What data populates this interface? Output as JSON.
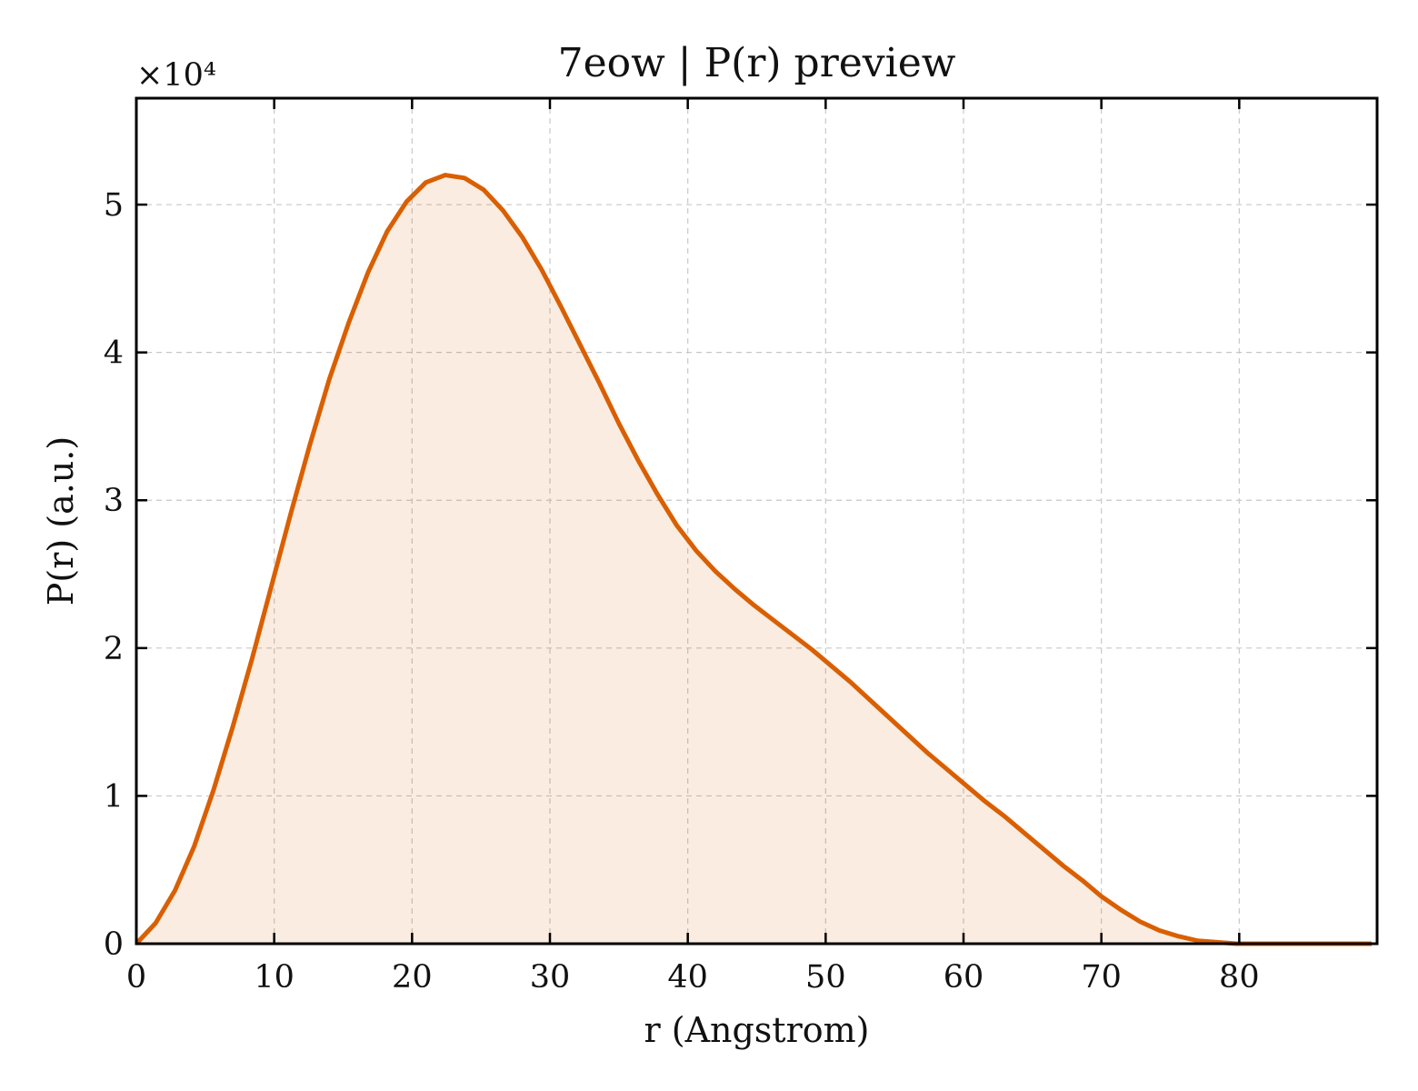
{
  "chart_data": {
    "type": "area",
    "title": "7eow | P(r) preview",
    "xlabel": "r (Angstrom)",
    "ylabel": "P(r) (a.u.)",
    "y_multiplier_label": "×10⁴",
    "y_scale_factor": 10000,
    "xlim": [
      0,
      90
    ],
    "ylim": [
      0,
      5.72
    ],
    "xticks": [
      0,
      10,
      20,
      30,
      40,
      50,
      60,
      70,
      80
    ],
    "yticks": [
      0,
      1,
      2,
      3,
      4,
      5
    ],
    "grid": true,
    "line_color": "#d95f02",
    "fill_color": "#d95f02",
    "series": [
      {
        "x": [
          0,
          1.4,
          2.8,
          4.2,
          5.6,
          7.0,
          8.4,
          9.8,
          11.2,
          12.6,
          14.0,
          15.4,
          16.8,
          18.2,
          19.6,
          21.0,
          22.4,
          23.8,
          25.2,
          26.6,
          28.0,
          29.4,
          30.8,
          32.2,
          33.6,
          35.0,
          36.4,
          37.8,
          39.2,
          40.6,
          42.0,
          43.4,
          44.8,
          46.2,
          47.6,
          49.0,
          50.4,
          51.8,
          53.2,
          54.6,
          56.0,
          57.4,
          58.8,
          60.2,
          61.6,
          63.0,
          64.4,
          65.8,
          67.2,
          68.6,
          70.0,
          71.4,
          72.8,
          74.2,
          75.6,
          77.0,
          78.4,
          79.8,
          81.2,
          82.6,
          84.0,
          85.4,
          86.8,
          88.2,
          89.6
        ],
        "y": [
          0.0,
          0.14,
          0.36,
          0.66,
          1.04,
          1.47,
          1.93,
          2.42,
          2.91,
          3.38,
          3.82,
          4.2,
          4.54,
          4.82,
          5.02,
          5.15,
          5.2,
          5.18,
          5.1,
          4.96,
          4.78,
          4.56,
          4.31,
          4.05,
          3.79,
          3.52,
          3.27,
          3.04,
          2.83,
          2.66,
          2.52,
          2.4,
          2.29,
          2.19,
          2.09,
          1.99,
          1.88,
          1.77,
          1.65,
          1.53,
          1.41,
          1.29,
          1.18,
          1.07,
          0.96,
          0.86,
          0.75,
          0.64,
          0.53,
          0.43,
          0.32,
          0.23,
          0.15,
          0.09,
          0.05,
          0.02,
          0.01,
          0.0,
          0.0,
          0.0,
          0.0,
          0.0,
          0.0,
          0.0,
          0.0
        ]
      }
    ]
  }
}
